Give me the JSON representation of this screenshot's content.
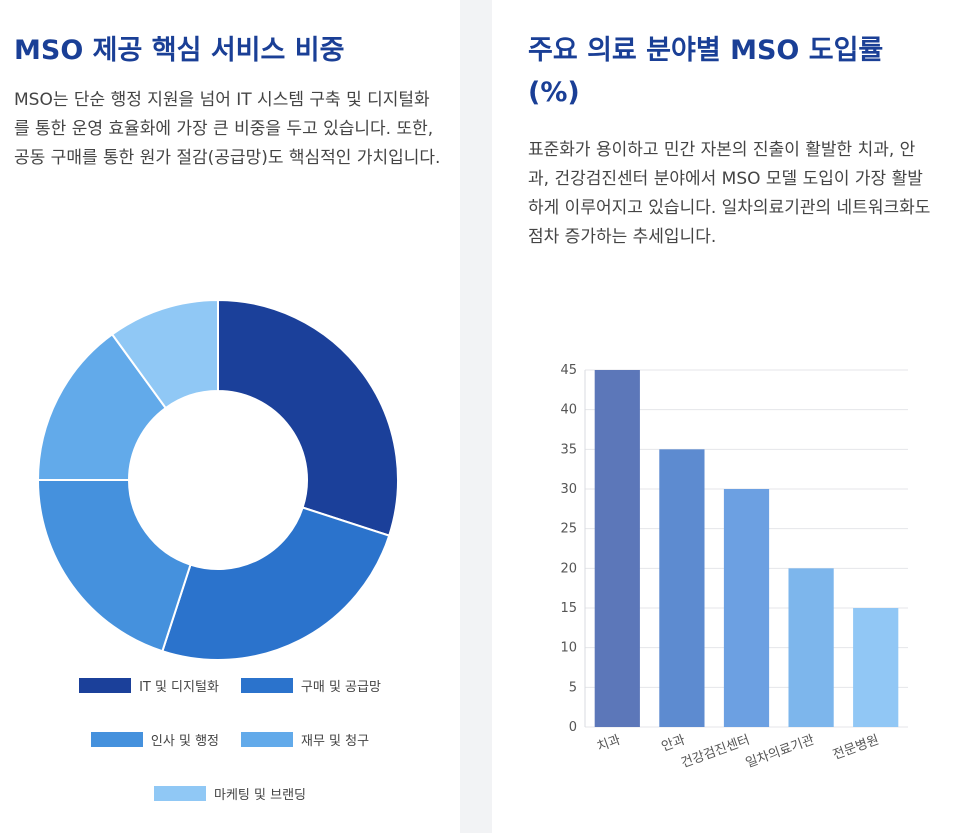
{
  "left_card": {
    "title": "MSO 제공 핵심 서비스 비중",
    "description": "MSO는 단순 행정 지원을 넘어 IT 시스템 구축 및 디지털화를 통한 운영 효율화에 가장 큰 비중을 두고 있습니다. 또한, 공동 구매를 통한 원가 절감(공급망)도 핵심적인 가치입니다."
  },
  "right_card": {
    "title": "주요 의료 분야별 MSO 도입률 (%)",
    "description": "표준화가 용이하고 민간 자본의 진출이 활발한 치과, 안과, 건강검진센터 분야에서 MSO 모델 도입이 가장 활발하게 이루어지고 있습니다. 일차의료기관의 네트워크화도 점차 증가하는 추세입니다."
  },
  "chart_data": [
    {
      "type": "pie",
      "variant": "doughnut",
      "title": "MSO 제공 핵심 서비스 비중",
      "categories": [
        "IT 및 디지털화",
        "구매 및 공급망",
        "인사 및 행정",
        "재무 및 청구",
        "마케팅 및 브랜딩"
      ],
      "values": [
        30,
        25,
        20,
        15,
        10
      ],
      "colors": [
        "#1b409a",
        "#2b73cc",
        "#4591dd",
        "#62aaea",
        "#90c8f5"
      ],
      "legend_position": "bottom"
    },
    {
      "type": "bar",
      "title": "주요 의료 분야별 MSO 도입률 (%)",
      "categories": [
        "치과",
        "안과",
        "건강검진센터",
        "일차의료기관",
        "전문병원"
      ],
      "values": [
        45,
        35,
        30,
        20,
        15
      ],
      "colors": [
        "#5c77b9",
        "#5d8bd0",
        "#6ca0e2",
        "#7db6ec",
        "#91c7f5"
      ],
      "ylim": [
        0,
        45
      ],
      "yticks": [
        0,
        5,
        10,
        15,
        20,
        25,
        30,
        35,
        40,
        45
      ],
      "grid": true,
      "xlabel": "",
      "ylabel": ""
    }
  ]
}
